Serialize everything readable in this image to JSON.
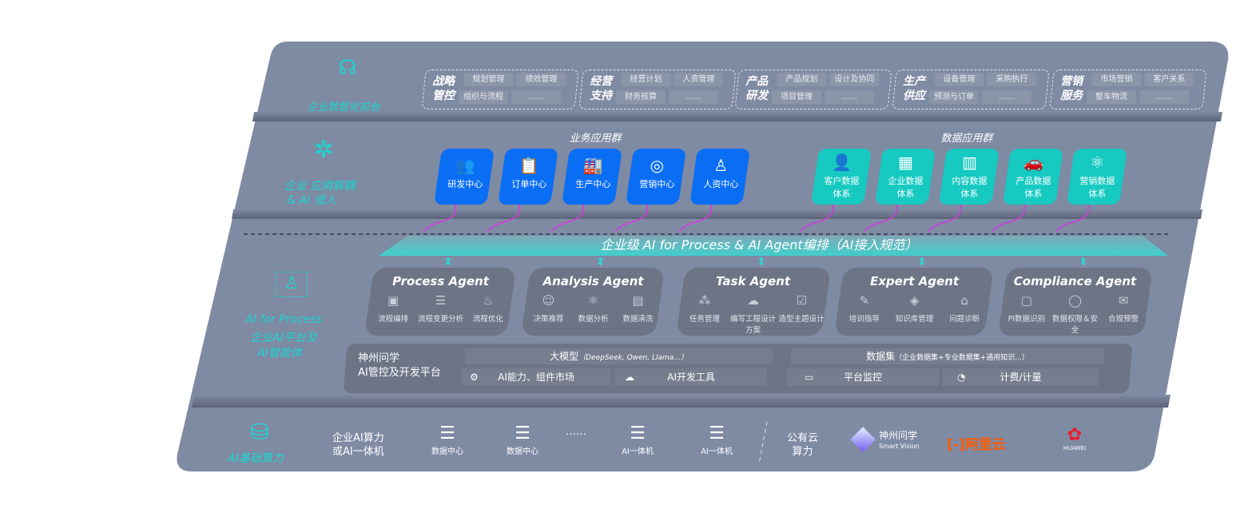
{
  "layers": {
    "front": {
      "label": "企业数智化前台",
      "icon": "brain-head-icon"
    },
    "apps": {
      "label_line1": "企业 应用解耦",
      "label_line2": "& AI 侵入",
      "icon": "molecule-icon"
    },
    "ai": {
      "label_line1": "AI for Process",
      "label_line2": "企业AI平台及",
      "label_line3": "AI智能体",
      "icon": "person-scan-icon"
    },
    "compute": {
      "label": "AI基础算力",
      "icon": "database-icon"
    }
  },
  "front_groups": [
    {
      "title": "战略管控",
      "tags": [
        "规划管理",
        "绩效管理",
        "组织与流程",
        "……"
      ]
    },
    {
      "title": "经营支持",
      "tags": [
        "经营计划",
        "人资管理",
        "财务核算",
        "……"
      ]
    },
    {
      "title": "产品研发",
      "tags": [
        "产品规划",
        "设计及协同",
        "项目管理",
        "……"
      ]
    },
    {
      "title": "生产供应",
      "tags": [
        "设备管理",
        "采购执行",
        "预测与订单",
        "……"
      ]
    },
    {
      "title": "营销服务",
      "tags": [
        "市场营销",
        "客户关系",
        "整车物流",
        "……"
      ]
    }
  ],
  "business_apps": {
    "title": "业务应用群",
    "items": [
      {
        "label": "研发中心",
        "icon": "users-icon"
      },
      {
        "label": "订单中心",
        "icon": "clipboard-icon"
      },
      {
        "label": "生产中心",
        "icon": "factory-icon"
      },
      {
        "label": "营销中心",
        "icon": "target-icon"
      },
      {
        "label": "人资中心",
        "icon": "person-icon"
      }
    ]
  },
  "data_apps": {
    "title": "数据应用群",
    "items": [
      {
        "line1": "客户数据",
        "line2": "体系",
        "icon": "user-icon"
      },
      {
        "line1": "企业数据",
        "line2": "体系",
        "icon": "building-icon"
      },
      {
        "line1": "内容数据",
        "line2": "体系",
        "icon": "books-icon"
      },
      {
        "line1": "产品数据",
        "line2": "体系",
        "icon": "car-icon"
      },
      {
        "line1": "营销数据",
        "line2": "体系",
        "icon": "atom-icon"
      }
    ]
  },
  "banner": "企业级 AI for Process & AI Agent编排（AI接入规范）",
  "agents": [
    {
      "title": "Process Agent",
      "items": [
        "流程编排",
        "流程变更分析",
        "流程优化"
      ]
    },
    {
      "title": "Analysis Agent",
      "items": [
        "决策推荐",
        "数据分析",
        "数据清洗"
      ]
    },
    {
      "title": "Task Agent",
      "items": [
        "任务管理",
        "编写工程设计方案",
        "造型主题设计"
      ]
    },
    {
      "title": "Expert Agent",
      "items": [
        "培训指导",
        "知识库管理",
        "问题诊断"
      ]
    },
    {
      "title": "Compliance Agent",
      "items": [
        "PI数据识别",
        "数据权限＆安全",
        "合规预警"
      ]
    }
  ],
  "platform": {
    "name_line1": "神州问学",
    "name_line2": "AI管控及开发平台",
    "model": "大模型",
    "model_note": "（DeepSeek, Qwen, Llama...）",
    "dataset": "数据集",
    "dataset_note": "（企业数据集+专业数据集+通用知识...）",
    "market": "AI能力、组件市场",
    "devtools": "AI开发工具",
    "monitor": "平台监控",
    "billing": "计费/计量"
  },
  "compute": {
    "enterprise_line1": "企业AI算力",
    "enterprise_line2": "或AI一体机",
    "servers": [
      "数据中心",
      "数据中心",
      "AI一体机",
      "AI一体机"
    ],
    "ellipsis": "……",
    "cloud_line1": "公有云",
    "cloud_line2": "算力",
    "vendors": {
      "shenzhou": "神州问学",
      "shenzhou_sub": "Smart Vision",
      "aliyun": "阿里云",
      "huawei": "HUAWEI"
    }
  },
  "colors": {
    "panel": "#7f8aa3",
    "teal": "#19d6d0",
    "blue": "#0a6ef5",
    "cyan": "#16c9c1",
    "arrow": "#d63ae0"
  }
}
